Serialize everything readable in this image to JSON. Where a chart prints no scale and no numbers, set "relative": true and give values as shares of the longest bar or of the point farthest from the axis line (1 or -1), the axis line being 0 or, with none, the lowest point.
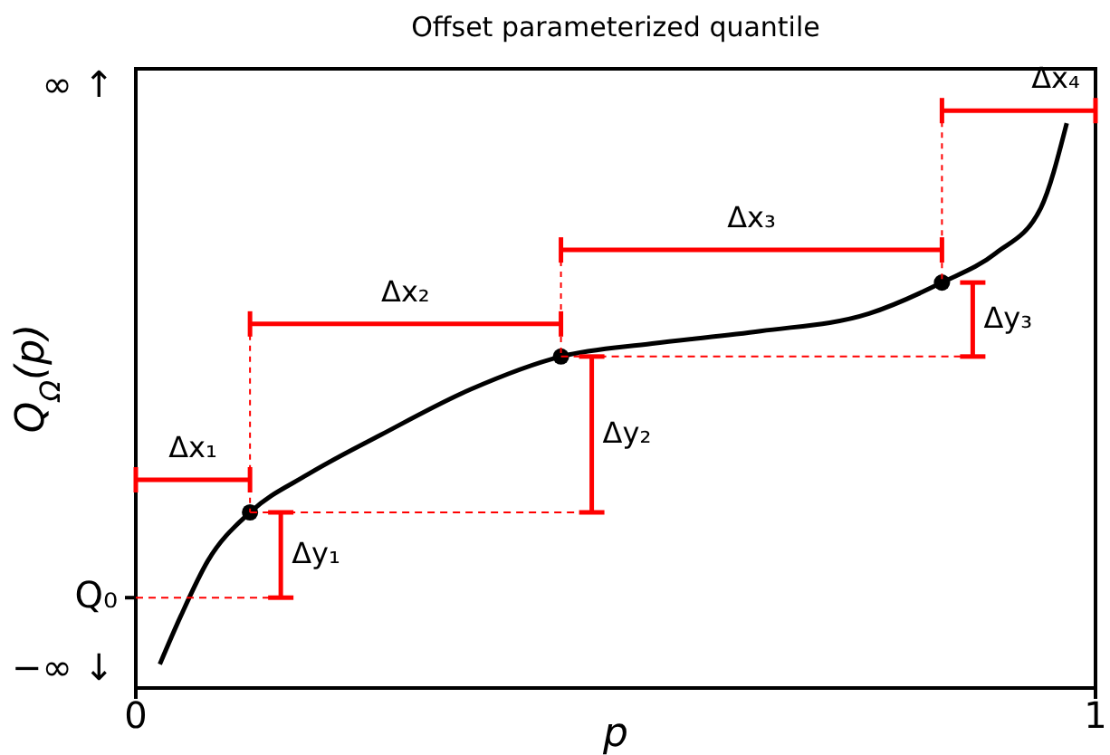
{
  "chart_data": {
    "type": "line",
    "relative": true,
    "title": "Offset parameterized quantile",
    "xlabel": "p",
    "ylabel": "Q$_{Ω}$(p)",
    "xlim": [
      0,
      1
    ],
    "xticks": [
      0,
      1
    ],
    "series": [
      {
        "color": "#000000",
        "marker": "none",
        "line_style": "solid",
        "x": [
          0.025,
          0.047,
          0.075,
          0.119,
          0.179,
          0.255,
          0.349,
          0.443,
          0.538,
          0.651,
          0.764,
          0.84,
          0.896,
          0.943,
          0.97
        ],
        "values": [
          0.042,
          0.128,
          0.225,
          0.311,
          0.378,
          0.448,
          0.529,
          0.587,
          0.61,
          0.632,
          0.663,
          0.718,
          0.77,
          0.85,
          1
        ]
      },
      {
        "type": "scatter",
        "color": "#000000",
        "marker": "circle",
        "x": [
          0.119,
          0.443,
          0.84
        ],
        "values": [
          0.311,
          0.587,
          0.718
        ]
      }
    ],
    "ref_lines": [
      {
        "axis": "y",
        "value": 0.16,
        "label": "Q₀",
        "color": "#ff0000",
        "line_style": "dashed"
      }
    ],
    "annotations": [
      "∞ ↑",
      "−∞ ↓",
      "Δx₁",
      "Δx₂",
      "Δx₃",
      "Δx₄",
      "Δy₁",
      "Δy₂",
      "Δy₃"
    ]
  }
}
